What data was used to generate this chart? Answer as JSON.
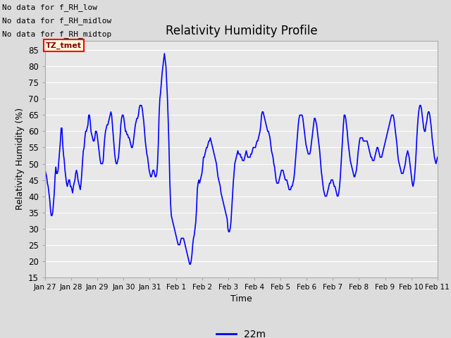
{
  "title": "Relativity Humidity Profile",
  "xlabel": "Time",
  "ylabel": "Relativity Humidity (%)",
  "ylim": [
    15,
    88
  ],
  "yticks": [
    15,
    20,
    25,
    30,
    35,
    40,
    45,
    50,
    55,
    60,
    65,
    70,
    75,
    80,
    85
  ],
  "line_color": "blue",
  "line_width": 1.2,
  "bg_color": "#dcdcdc",
  "plot_bg_color": "#e8e8e8",
  "legend_label": "22m",
  "legend_line_color": "blue",
  "no_data_texts": [
    "No data for f_RH_low",
    "No data for f_RH_midlow",
    "No data for f_RH_midtop"
  ],
  "tz_label": "TZ_tmet",
  "x_tick_labels": [
    "Jan 27",
    "Jan 28",
    "Jan 29",
    "Jan 30",
    "Jan 31",
    "Feb 1",
    "Feb 2",
    "Feb 3",
    "Feb 4",
    "Feb 5",
    "Feb 6",
    "Feb 7",
    "Feb 8",
    "Feb 9",
    "Feb 10",
    "Feb 11"
  ],
  "x_tick_positions": [
    0,
    1,
    2,
    3,
    4,
    5,
    6,
    7,
    8,
    9,
    10,
    11,
    12,
    13,
    14,
    15
  ],
  "rh_values": [
    48,
    47,
    46,
    44,
    43,
    41,
    39,
    36,
    34,
    34,
    35,
    38,
    41,
    46,
    49,
    47,
    47,
    48,
    51,
    54,
    57,
    61,
    61,
    56,
    53,
    51,
    48,
    46,
    44,
    43,
    44,
    45,
    45,
    43,
    43,
    42,
    41,
    43,
    44,
    45,
    47,
    48,
    47,
    45,
    44,
    43,
    42,
    44,
    47,
    51,
    54,
    55,
    58,
    60,
    60,
    61,
    62,
    65,
    65,
    63,
    60,
    59,
    58,
    57,
    57,
    58,
    60,
    60,
    59,
    57,
    55,
    53,
    51,
    50,
    50,
    50,
    51,
    55,
    58,
    60,
    61,
    62,
    62,
    63,
    64,
    65,
    66,
    65,
    62,
    59,
    56,
    53,
    51,
    50,
    50,
    51,
    52,
    55,
    58,
    62,
    64,
    65,
    65,
    64,
    62,
    60,
    60,
    59,
    59,
    58,
    58,
    57,
    56,
    55,
    55,
    56,
    58,
    60,
    62,
    63,
    64,
    64,
    65,
    67,
    68,
    68,
    68,
    67,
    65,
    63,
    60,
    57,
    55,
    53,
    52,
    50,
    48,
    47,
    46,
    46,
    47,
    48,
    48,
    47,
    46,
    46,
    47,
    50,
    56,
    65,
    70,
    72,
    75,
    78,
    80,
    82,
    84,
    82,
    80,
    75,
    70,
    63,
    55,
    45,
    38,
    34,
    33,
    32,
    31,
    30,
    29,
    28,
    27,
    26,
    25,
    25,
    25,
    26,
    27,
    27,
    27,
    27,
    26,
    25,
    24,
    23,
    22,
    21,
    20,
    19,
    19,
    20,
    22,
    25,
    27,
    28,
    30,
    32,
    36,
    42,
    44,
    45,
    44,
    45,
    46,
    47,
    49,
    52,
    52,
    53,
    54,
    55,
    55,
    56,
    57,
    57,
    58,
    57,
    56,
    55,
    54,
    53,
    52,
    51,
    50,
    48,
    46,
    45,
    44,
    43,
    41,
    40,
    39,
    38,
    37,
    36,
    35,
    34,
    33,
    30,
    29,
    29,
    30,
    32,
    36,
    40,
    44,
    47,
    50,
    51,
    52,
    53,
    54,
    53,
    53,
    53,
    52,
    52,
    51,
    51,
    51,
    52,
    53,
    54,
    53,
    52,
    52,
    52,
    52,
    53,
    53,
    54,
    55,
    55,
    55,
    55,
    56,
    57,
    57,
    58,
    59,
    60,
    62,
    65,
    66,
    66,
    65,
    64,
    63,
    62,
    61,
    60,
    60,
    59,
    58,
    56,
    54,
    53,
    52,
    50,
    49,
    47,
    45,
    44,
    44,
    44,
    45,
    46,
    47,
    48,
    48,
    48,
    47,
    46,
    45,
    45,
    45,
    44,
    43,
    42,
    42,
    42,
    43,
    43,
    44,
    45,
    47,
    50,
    53,
    56,
    59,
    62,
    64,
    65,
    65,
    65,
    65,
    64,
    62,
    60,
    58,
    56,
    55,
    54,
    53,
    53,
    53,
    54,
    56,
    58,
    60,
    62,
    64,
    64,
    63,
    62,
    60,
    58,
    56,
    54,
    51,
    48,
    46,
    44,
    42,
    41,
    40,
    40,
    40,
    41,
    42,
    43,
    44,
    44,
    45,
    45,
    45,
    44,
    43,
    43,
    42,
    41,
    40,
    40,
    41,
    43,
    46,
    50,
    54,
    58,
    62,
    65,
    65,
    64,
    62,
    60,
    57,
    55,
    53,
    51,
    50,
    49,
    48,
    47,
    46,
    46,
    47,
    48,
    50,
    53,
    55,
    57,
    58,
    58,
    58,
    58,
    57,
    57,
    57,
    57,
    57,
    57,
    56,
    55,
    54,
    53,
    52,
    52,
    51,
    51,
    51,
    52,
    53,
    54,
    55,
    55,
    54,
    53,
    52,
    52,
    52,
    53,
    54,
    55,
    56,
    57,
    58,
    59,
    60,
    61,
    62,
    63,
    64,
    65,
    65,
    65,
    64,
    62,
    60,
    58,
    56,
    53,
    51,
    50,
    49,
    48,
    47,
    47,
    47,
    48,
    49,
    50,
    52,
    53,
    54,
    53,
    52,
    50,
    48,
    46,
    44,
    43,
    44,
    46,
    49,
    53,
    58,
    62,
    65,
    67,
    68,
    68,
    67,
    65,
    63,
    61,
    60,
    60,
    62,
    63,
    65,
    66,
    66,
    65,
    63,
    61,
    58,
    56,
    54,
    52,
    51,
    50,
    51,
    52
  ]
}
